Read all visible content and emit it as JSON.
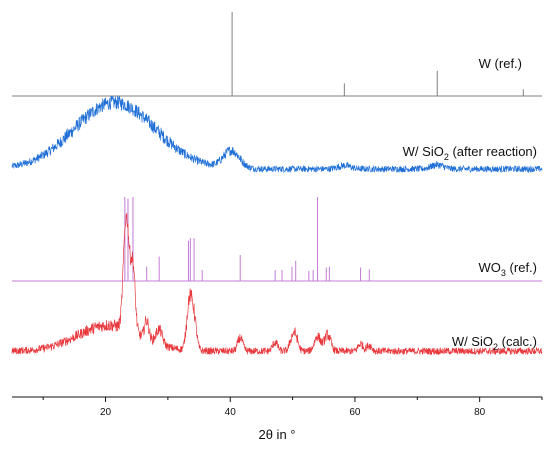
{
  "chart_data": {
    "type": "line",
    "xlabel": "2θ in °",
    "ylabel": "",
    "xlim": [
      5,
      90
    ],
    "x_ticks": [
      20,
      40,
      60,
      80
    ],
    "grid": false,
    "legend": "none",
    "series": [
      {
        "name": "W (ref.)",
        "name_parts": [
          "W (ref.)",
          "",
          ""
        ],
        "kind": "sticks",
        "color": "#7f7f7f",
        "peaks": [
          [
            40.3,
            100
          ],
          [
            58.3,
            15
          ],
          [
            73.2,
            30
          ],
          [
            87.0,
            8
          ]
        ]
      },
      {
        "name": "W/ SiO2 (after reaction)",
        "name_parts": [
          "W/ SiO",
          "2",
          " (after reaction)"
        ],
        "kind": "pattern",
        "color": "#1f6fd6",
        "noise": 0.1,
        "baseline": 0.1,
        "features": [
          [
            21.5,
            6.5,
            0.95
          ],
          [
            40.2,
            1.3,
            0.25
          ],
          [
            58.3,
            1.0,
            0.05
          ],
          [
            73.2,
            1.0,
            0.06
          ]
        ]
      },
      {
        "name": "WO3 (ref.)",
        "name_parts": [
          "WO",
          "3",
          " (ref.)"
        ],
        "kind": "sticks",
        "color": "#c27bd6",
        "peaks": [
          [
            23.1,
            100
          ],
          [
            23.6,
            98
          ],
          [
            24.4,
            100
          ],
          [
            26.6,
            17
          ],
          [
            28.6,
            29
          ],
          [
            33.3,
            48
          ],
          [
            33.6,
            51
          ],
          [
            34.2,
            51
          ],
          [
            35.5,
            13
          ],
          [
            41.6,
            31
          ],
          [
            47.2,
            13
          ],
          [
            48.3,
            13
          ],
          [
            49.9,
            17
          ],
          [
            50.5,
            24
          ],
          [
            52.6,
            12
          ],
          [
            53.3,
            13
          ],
          [
            54.0,
            100
          ],
          [
            55.4,
            16
          ],
          [
            55.9,
            17
          ],
          [
            60.9,
            16
          ],
          [
            62.3,
            14
          ]
        ]
      },
      {
        "name": "W/ SiO2 (calc.)",
        "name_parts": [
          "W/ SiO",
          "2",
          " (calc.)"
        ],
        "kind": "pattern",
        "color": "#e8383d",
        "noise": 0.1,
        "baseline": 0.12,
        "features": [
          [
            20.5,
            5.0,
            0.35
          ],
          [
            23.1,
            0.35,
            1.0
          ],
          [
            23.6,
            0.35,
            0.95
          ],
          [
            24.4,
            0.35,
            0.9
          ],
          [
            26.6,
            0.35,
            0.25
          ],
          [
            28.6,
            0.5,
            0.2
          ],
          [
            33.3,
            0.4,
            0.35
          ],
          [
            33.6,
            0.4,
            0.35
          ],
          [
            34.2,
            0.4,
            0.4
          ],
          [
            41.6,
            0.4,
            0.18
          ],
          [
            47.2,
            0.4,
            0.12
          ],
          [
            49.9,
            0.4,
            0.15
          ],
          [
            50.5,
            0.4,
            0.18
          ],
          [
            54.0,
            0.5,
            0.2
          ],
          [
            55.6,
            0.5,
            0.22
          ],
          [
            60.9,
            0.4,
            0.1
          ],
          [
            62.3,
            0.4,
            0.08
          ]
        ]
      }
    ]
  }
}
